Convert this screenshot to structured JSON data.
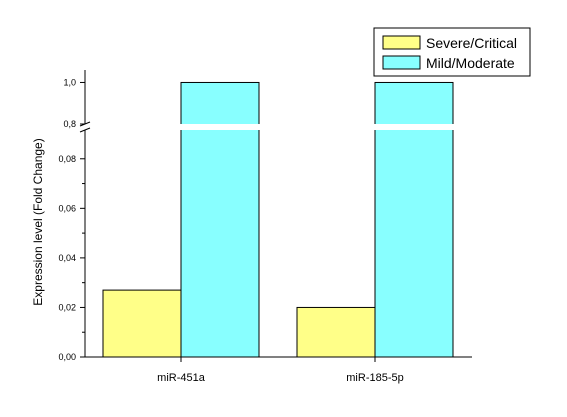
{
  "chart_data": {
    "type": "bar",
    "categories": [
      "miR-451a",
      "miR-185-5p"
    ],
    "series": [
      {
        "name": "Severe/Critical",
        "values": [
          0.027,
          0.02
        ],
        "color": "#ffff88"
      },
      {
        "name": "Mild/Moderate",
        "values": [
          1.0,
          1.0
        ],
        "color": "#88ffff"
      }
    ],
    "ylabel": "Expression level (Fold Change)",
    "xlabel": "",
    "y_axis_break": true,
    "lower_segment": {
      "ylim": [
        0,
        0.09
      ],
      "ticks": [
        {
          "value": 0.0,
          "label": "0,00"
        },
        {
          "value": 0.02,
          "label": "0,02"
        },
        {
          "value": 0.04,
          "label": "0,04"
        },
        {
          "value": 0.06,
          "label": "0,06"
        },
        {
          "value": 0.08,
          "label": "0,08"
        }
      ]
    },
    "upper_segment": {
      "ylim": [
        0.8,
        1.06
      ],
      "ticks": [
        {
          "value": 0.8,
          "label": "0,8"
        },
        {
          "value": 1.0,
          "label": "1,0"
        }
      ]
    },
    "legend_position": "top-right",
    "grid": false
  }
}
